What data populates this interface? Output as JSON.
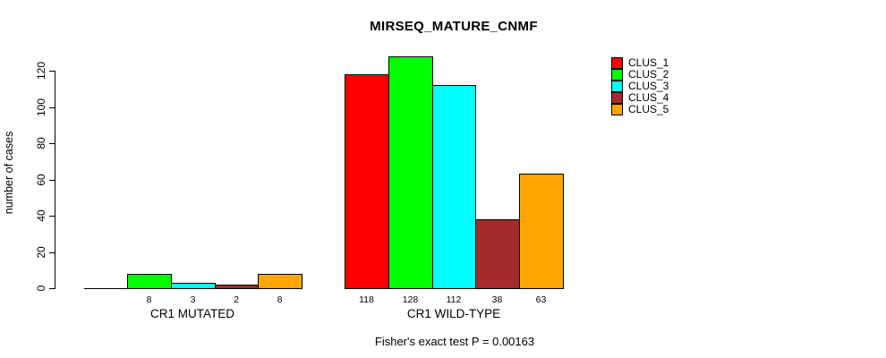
{
  "page": {
    "background": "#ffffff",
    "text_color": "#000000"
  },
  "chart_data": {
    "type": "bar",
    "title": "MIRSEQ_MATURE_CNMF",
    "ylabel": "number of cases",
    "xlabel": "",
    "footer": "Fisher's exact test P = 0.00163",
    "categories": [
      "CR1 MUTATED",
      "CR1 WILD-TYPE"
    ],
    "series": [
      {
        "name": "CLUS_1",
        "color": "#FF0000",
        "values": [
          0,
          118
        ]
      },
      {
        "name": "CLUS_2",
        "color": "#00FF00",
        "values": [
          8,
          128
        ]
      },
      {
        "name": "CLUS_3",
        "color": "#00FFFF",
        "values": [
          3,
          112
        ]
      },
      {
        "name": "CLUS_4",
        "color": "#A52A2A",
        "values": [
          2,
          38
        ]
      },
      {
        "name": "CLUS_5",
        "color": "#FFA500",
        "values": [
          8,
          63
        ]
      }
    ],
    "bar_labels": [
      [
        "",
        "8",
        "3",
        "2",
        "8"
      ],
      [
        "118",
        "128",
        "112",
        "38",
        "63"
      ]
    ],
    "yticks": [
      0,
      20,
      40,
      60,
      80,
      100,
      120
    ],
    "ylim": [
      0,
      120
    ],
    "grid": false,
    "legend_position": "right-outside",
    "legend_frame": false,
    "bar_border_color": "#000000",
    "axis_color": "#000000"
  }
}
